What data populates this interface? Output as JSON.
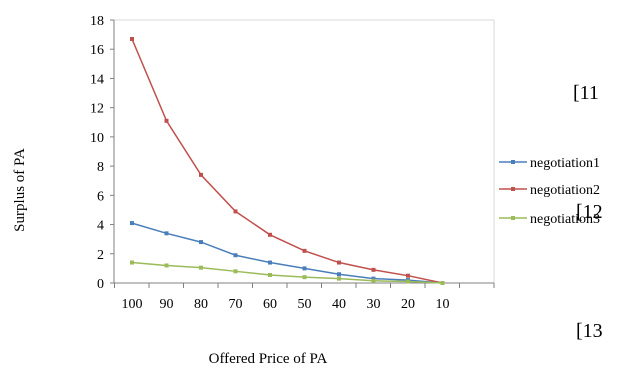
{
  "chart_data": {
    "type": "line",
    "title": "",
    "xlabel": "Offered Price of PA",
    "ylabel": "Surplus of PA",
    "categories": [
      "100",
      "90",
      "80",
      "70",
      "60",
      "50",
      "40",
      "30",
      "20",
      "10"
    ],
    "ylim": [
      0,
      18
    ],
    "yticks": [
      0,
      2,
      4,
      6,
      8,
      10,
      12,
      14,
      16,
      18
    ],
    "grid": false,
    "legend_position": "right",
    "series": [
      {
        "name": "negotiation1",
        "color": "#4a7ebb",
        "values": [
          4.1,
          3.4,
          2.8,
          1.9,
          1.4,
          1.0,
          0.6,
          0.3,
          0.2,
          0.0
        ]
      },
      {
        "name": "negotiation2",
        "color": "#c0504d",
        "values": [
          16.7,
          11.1,
          7.4,
          4.9,
          3.3,
          2.2,
          1.4,
          0.9,
          0.5,
          0.0
        ]
      },
      {
        "name": "negotiation3",
        "color": "#9bbb59",
        "values": [
          1.4,
          1.2,
          1.05,
          0.8,
          0.55,
          0.4,
          0.3,
          0.15,
          0.1,
          0.0
        ]
      }
    ]
  },
  "side_text": [
    "[11",
    "[12",
    "[13"
  ]
}
